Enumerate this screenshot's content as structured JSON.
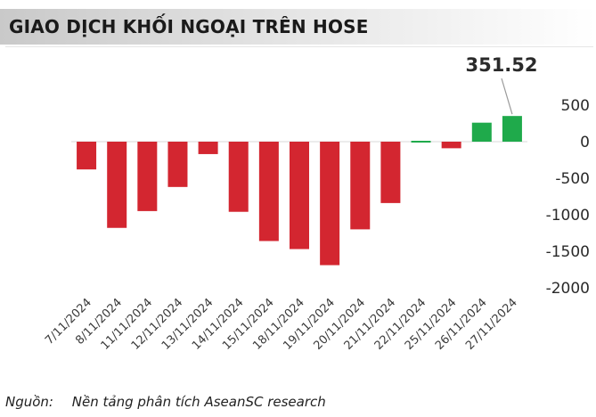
{
  "header": {
    "title": "GIAO DỊCH KHỐI NGOẠI TRÊN HOSE"
  },
  "footer": {
    "source_label": "Nguồn:",
    "source_text": "Nền tảng phân tích AseanSC research"
  },
  "colors": {
    "negative": "#d32630",
    "positive": "#1faa4b",
    "zero_line": "#d9d9d9",
    "callout_line": "#9a9a9a"
  },
  "chart_data": {
    "type": "bar",
    "title": "GIAO DỊCH KHỐI NGOẠI TRÊN HOSE",
    "xlabel": "",
    "ylabel": "",
    "categories": [
      "7/11/2024",
      "8/11/2024",
      "11/11/2024",
      "12/11/2024",
      "13/11/2024",
      "14/11/2024",
      "15/11/2024",
      "18/11/2024",
      "19/11/2024",
      "20/11/2024",
      "21/11/2024",
      "22/11/2024",
      "25/11/2024",
      "26/11/2024",
      "27/11/2024"
    ],
    "values": [
      -380,
      -1180,
      -950,
      -620,
      -170,
      -960,
      -1360,
      -1470,
      -1690,
      -1200,
      -840,
      20,
      -90,
      260,
      351.52
    ],
    "ylim": [
      -2000,
      500
    ],
    "yticks": [
      500,
      0,
      -500,
      -1000,
      -1500,
      -2000
    ],
    "ytick_labels": [
      "500",
      "0",
      "-500",
      "-1000",
      "-1500",
      "-2000"
    ],
    "axis_position": "right",
    "grid": false,
    "annotation": {
      "category": "27/11/2024",
      "text": "351.52"
    }
  }
}
